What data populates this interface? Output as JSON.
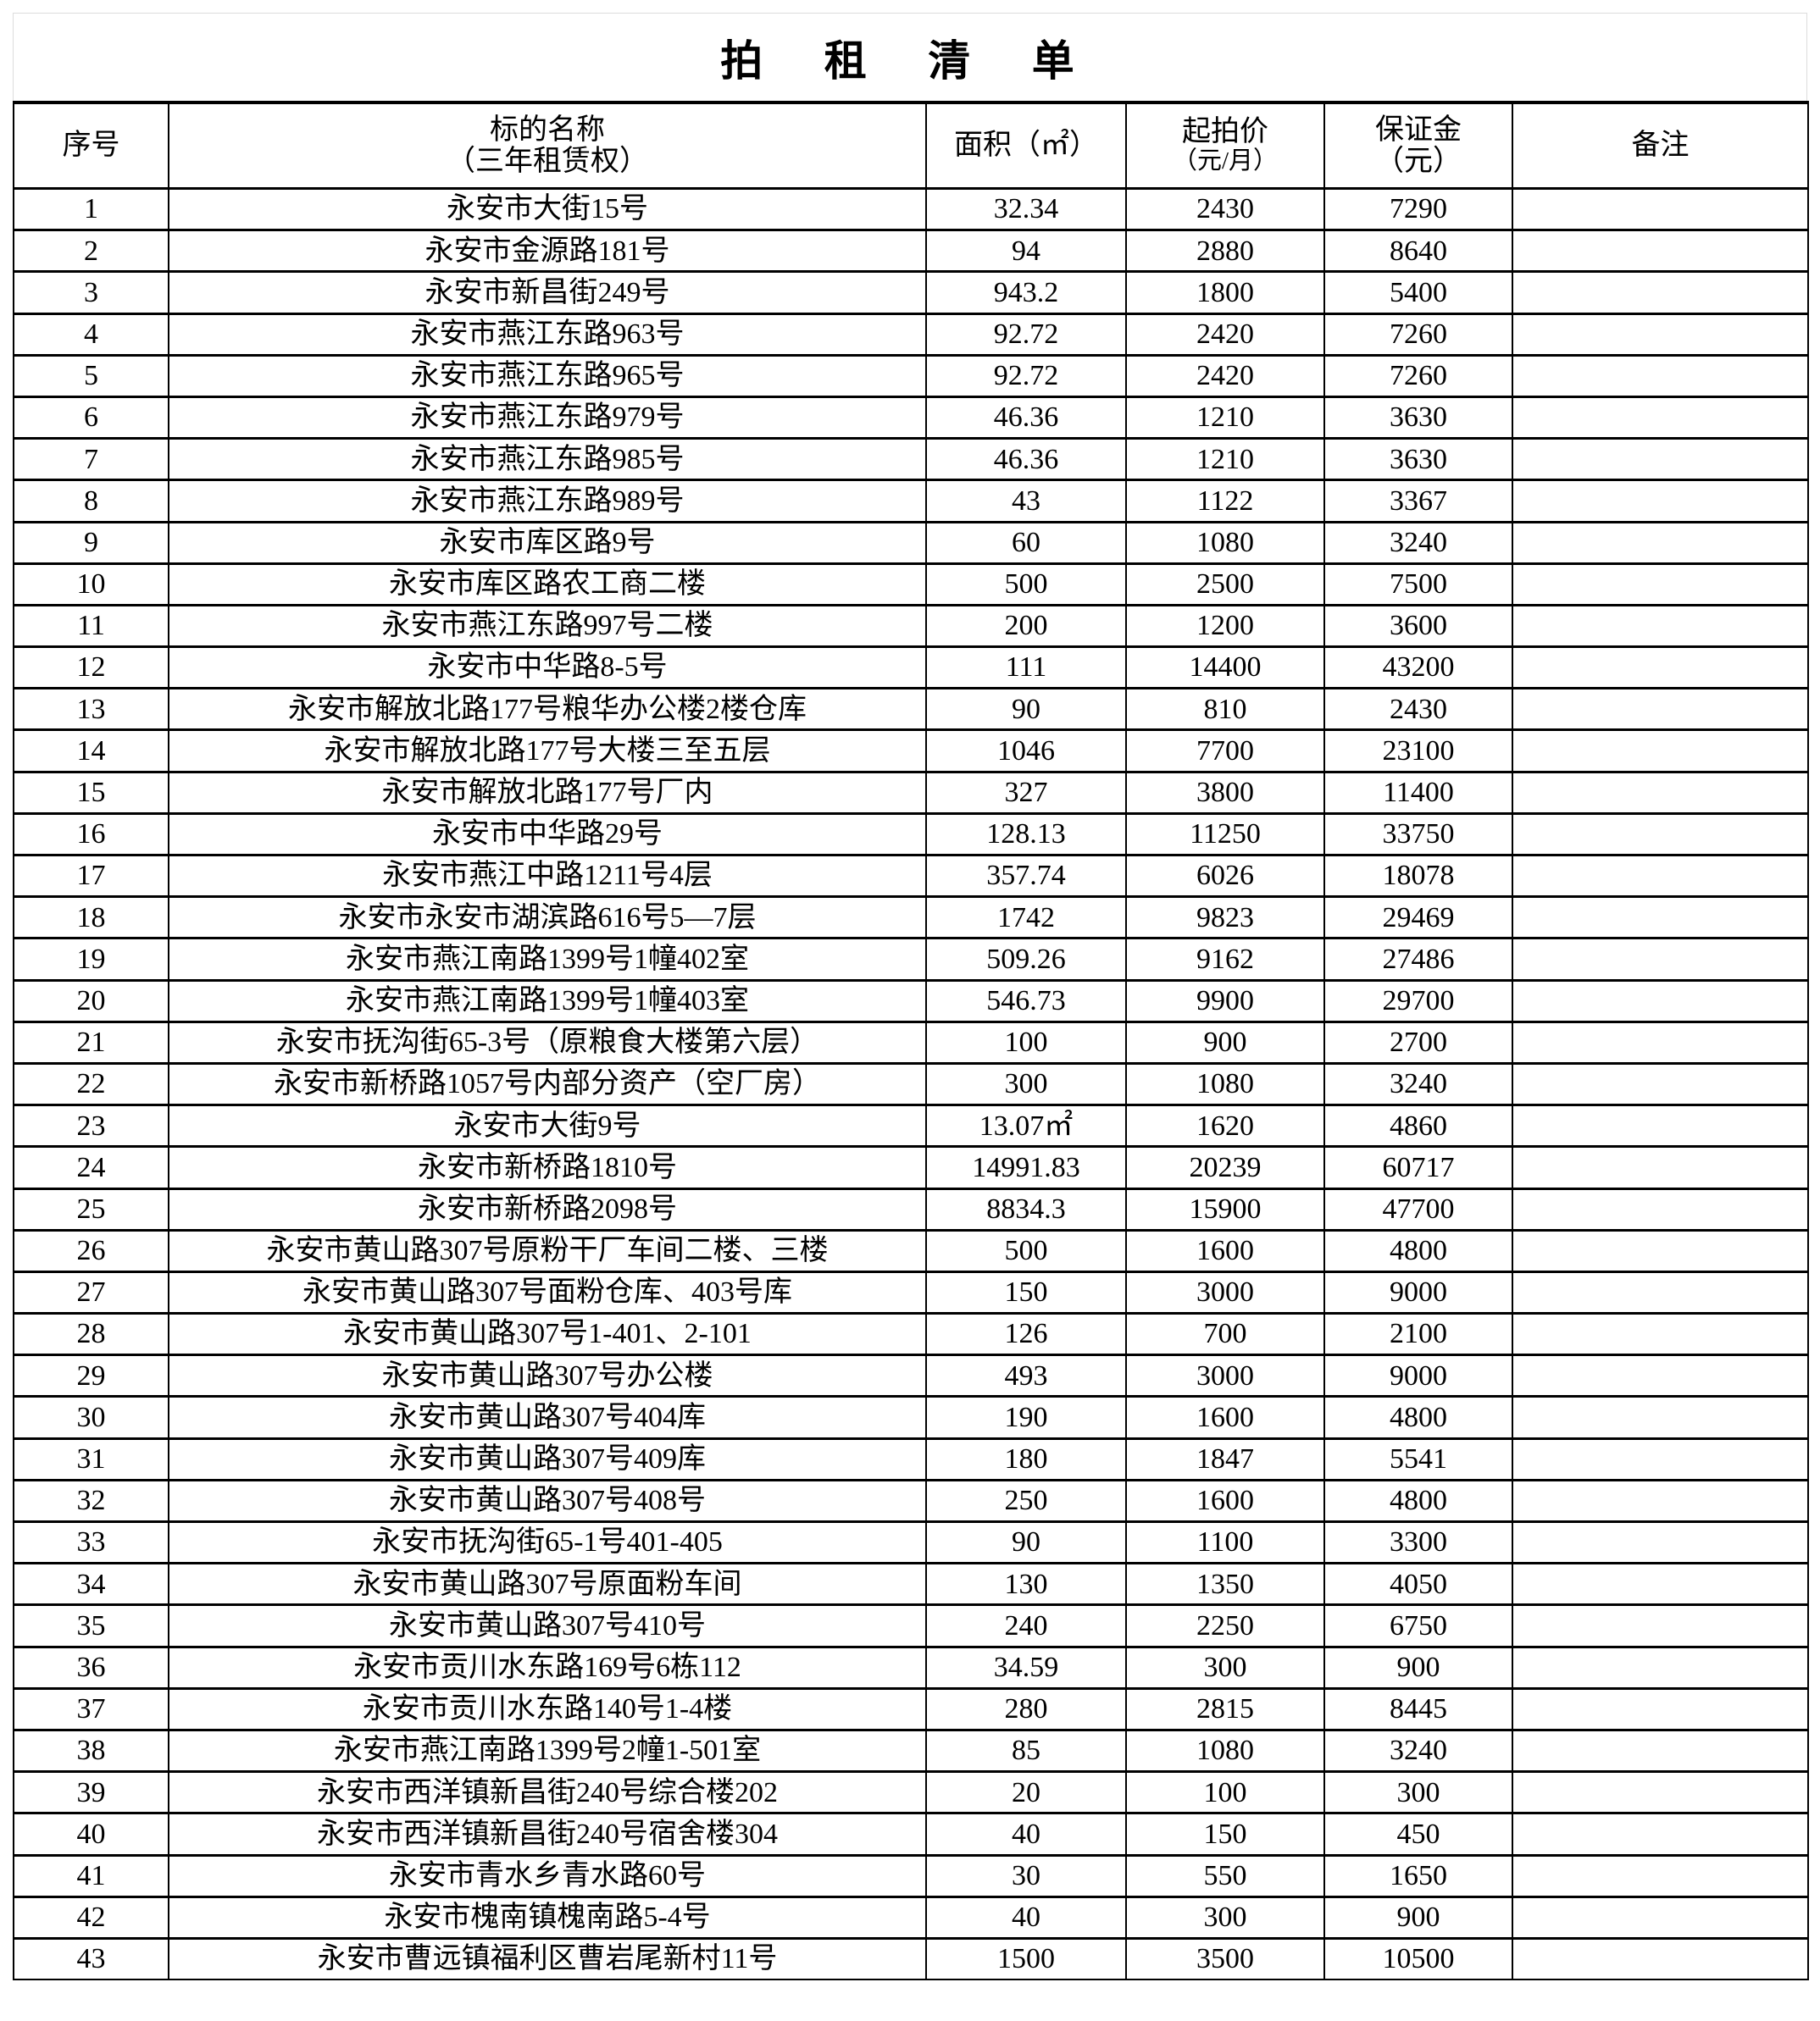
{
  "title": "拍 租 清 单",
  "headers": {
    "no": "序号",
    "name": "标的名称",
    "name_sub": "（三年租赁权）",
    "area": "面积（㎡）",
    "price": "起拍价",
    "price_sub": "（元/月）",
    "deposit": "保证金",
    "deposit_sub": "（元）",
    "note": "备注"
  },
  "rows": [
    [
      "1",
      "永安市大街15号",
      "32.34",
      "2430",
      "7290",
      ""
    ],
    [
      "2",
      "永安市金源路181号",
      "94",
      "2880",
      "8640",
      ""
    ],
    [
      "3",
      "永安市新昌街249号",
      "943.2",
      "1800",
      "5400",
      ""
    ],
    [
      "4",
      "永安市燕江东路963号",
      "92.72",
      "2420",
      "7260",
      ""
    ],
    [
      "5",
      "永安市燕江东路965号",
      "92.72",
      "2420",
      "7260",
      ""
    ],
    [
      "6",
      "永安市燕江东路979号",
      "46.36",
      "1210",
      "3630",
      ""
    ],
    [
      "7",
      "永安市燕江东路985号",
      "46.36",
      "1210",
      "3630",
      ""
    ],
    [
      "8",
      "永安市燕江东路989号",
      "43",
      "1122",
      "3367",
      ""
    ],
    [
      "9",
      "永安市库区路9号",
      "60",
      "1080",
      "3240",
      ""
    ],
    [
      "10",
      "永安市库区路农工商二楼",
      "500",
      "2500",
      "7500",
      ""
    ],
    [
      "11",
      "永安市燕江东路997号二楼",
      "200",
      "1200",
      "3600",
      ""
    ],
    [
      "12",
      "永安市中华路8-5号",
      "111",
      "14400",
      "43200",
      ""
    ],
    [
      "13",
      "永安市解放北路177号粮华办公楼2楼仓库",
      "90",
      "810",
      "2430",
      ""
    ],
    [
      "14",
      "永安市解放北路177号大楼三至五层",
      "1046",
      "7700",
      "23100",
      ""
    ],
    [
      "15",
      "永安市解放北路177号厂内",
      "327",
      "3800",
      "11400",
      ""
    ],
    [
      "16",
      "永安市中华路29号",
      "128.13",
      "11250",
      "33750",
      ""
    ],
    [
      "17",
      "永安市燕江中路1211号4层",
      "357.74",
      "6026",
      "18078",
      ""
    ],
    [
      "18",
      "永安市永安市湖滨路616号5—7层",
      "1742",
      "9823",
      "29469",
      ""
    ],
    [
      "19",
      "永安市燕江南路1399号1幢402室",
      "509.26",
      "9162",
      "27486",
      ""
    ],
    [
      "20",
      "永安市燕江南路1399号1幢403室",
      "546.73",
      "9900",
      "29700",
      ""
    ],
    [
      "21",
      "永安市抚沟街65-3号（原粮食大楼第六层）",
      "100",
      "900",
      "2700",
      ""
    ],
    [
      "22",
      "永安市新桥路1057号内部分资产（空厂房）",
      "300",
      "1080",
      "3240",
      ""
    ],
    [
      "23",
      "永安市大街9号",
      "13.07㎡",
      "1620",
      "4860",
      ""
    ],
    [
      "24",
      "永安市新桥路1810号",
      "14991.83",
      "20239",
      "60717",
      ""
    ],
    [
      "25",
      "永安市新桥路2098号",
      "8834.3",
      "15900",
      "47700",
      ""
    ],
    [
      "26",
      "永安市黄山路307号原粉干厂车间二楼、三楼",
      "500",
      "1600",
      "4800",
      ""
    ],
    [
      "27",
      "永安市黄山路307号面粉仓库、403号库",
      "150",
      "3000",
      "9000",
      ""
    ],
    [
      "28",
      "永安市黄山路307号1-401、2-101",
      "126",
      "700",
      "2100",
      ""
    ],
    [
      "29",
      "永安市黄山路307号办公楼",
      "493",
      "3000",
      "9000",
      ""
    ],
    [
      "30",
      "永安市黄山路307号404库",
      "190",
      "1600",
      "4800",
      ""
    ],
    [
      "31",
      "永安市黄山路307号409库",
      "180",
      "1847",
      "5541",
      ""
    ],
    [
      "32",
      "永安市黄山路307号408号",
      "250",
      "1600",
      "4800",
      ""
    ],
    [
      "33",
      "永安市抚沟街65-1号401-405",
      "90",
      "1100",
      "3300",
      ""
    ],
    [
      "34",
      "永安市黄山路307号原面粉车间",
      "130",
      "1350",
      "4050",
      ""
    ],
    [
      "35",
      "永安市黄山路307号410号",
      "240",
      "2250",
      "6750",
      ""
    ],
    [
      "36",
      "永安市贡川水东路169号6栋112",
      "34.59",
      "300",
      "900",
      ""
    ],
    [
      "37",
      "永安市贡川水东路140号1-4楼",
      "280",
      "2815",
      "8445",
      ""
    ],
    [
      "38",
      "永安市燕江南路1399号2幢1-501室",
      "85",
      "1080",
      "3240",
      ""
    ],
    [
      "39",
      "永安市西洋镇新昌街240号综合楼202",
      "20",
      "100",
      "300",
      ""
    ],
    [
      "40",
      "永安市西洋镇新昌街240号宿舍楼304",
      "40",
      "150",
      "450",
      ""
    ],
    [
      "41",
      "永安市青水乡青水路60号",
      "30",
      "550",
      "1650",
      ""
    ],
    [
      "42",
      "永安市槐南镇槐南路5-4号",
      "40",
      "300",
      "900",
      ""
    ],
    [
      "43",
      "永安市曹远镇福利区曹岩尾新村11号",
      "1500",
      "3500",
      "10500",
      ""
    ]
  ]
}
